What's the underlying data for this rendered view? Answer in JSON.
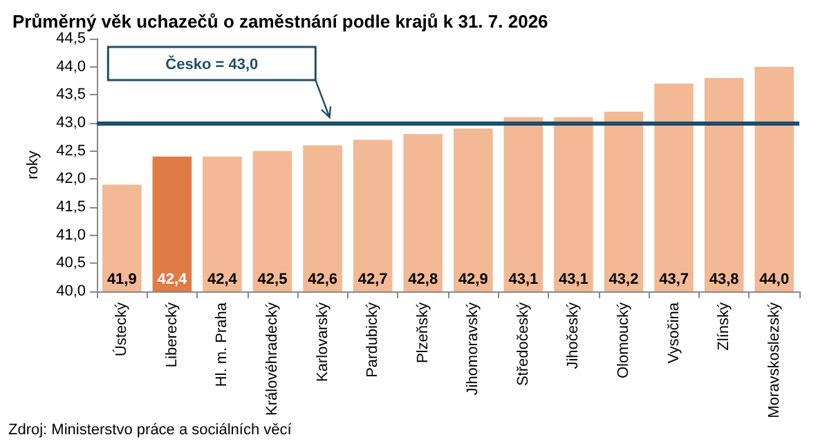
{
  "chart_data": {
    "type": "bar",
    "title": "Průměrný věk uchazečů o zaměstnání podle krajů k 31. 7. 2026",
    "ylabel": "roky",
    "categories": [
      "Ústecký",
      "Liberecký",
      "Hl. m. Praha",
      "Královéhradecký",
      "Karlovarský",
      "Pardubický",
      "Plzeňský",
      "Jihomoravský",
      "Středočeský",
      "Jihočeský",
      "Olomoucký",
      "Vysočina",
      "Zlínský",
      "Moravskoslezský"
    ],
    "values": [
      41.9,
      42.4,
      42.4,
      42.5,
      42.6,
      42.7,
      42.8,
      42.9,
      43.1,
      43.1,
      43.2,
      43.7,
      43.8,
      44.0
    ],
    "colors": [
      "#f2b994",
      "#e07b45",
      "#f2b994",
      "#f2b994",
      "#f2b994",
      "#f2b994",
      "#f2b994",
      "#f2b994",
      "#f2b994",
      "#f2b994",
      "#f2b994",
      "#f2b994",
      "#f2b994",
      "#f2b994"
    ],
    "ylim": [
      40.0,
      44.5
    ],
    "yticks": [
      {
        "value": 40.0,
        "label": "40,0"
      },
      {
        "value": 40.5,
        "label": "40,5"
      },
      {
        "value": 41.0,
        "label": "41,0"
      },
      {
        "value": 41.5,
        "label": "41,5"
      },
      {
        "value": 42.0,
        "label": "42,0"
      },
      {
        "value": 42.5,
        "label": "42,5"
      },
      {
        "value": 43.0,
        "label": "43,0"
      },
      {
        "value": 43.5,
        "label": "43,5"
      },
      {
        "value": 44.0,
        "label": "44,0"
      },
      {
        "value": 44.5,
        "label": "44,5"
      }
    ],
    "value_labels": [
      "41,9",
      "42,4",
      "42,4",
      "42,5",
      "42,6",
      "42,7",
      "42,8",
      "42,9",
      "43,1",
      "43,1",
      "43,2",
      "43,7",
      "43,8",
      "44,0"
    ],
    "grid": false,
    "ref_lines": [
      {
        "axis": "y",
        "value": 43.0,
        "label": "Česko = 43,0",
        "color": "#1f4e6b"
      }
    ],
    "annotations": [
      "Zdroj: Ministerstvo práce a sociálních věcí"
    ]
  }
}
